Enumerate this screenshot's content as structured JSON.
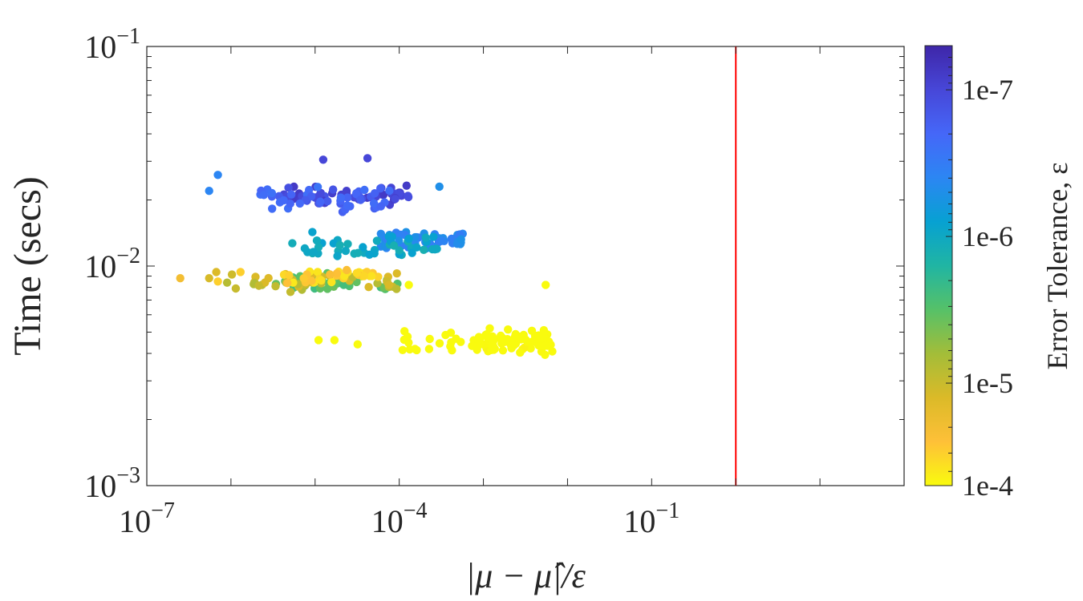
{
  "chart_data": {
    "type": "scatter",
    "xscale": "log",
    "yscale": "log",
    "xlim": [
      1e-07,
      100
    ],
    "ylim": [
      0.001,
      0.1
    ],
    "xticks": [
      {
        "value": 1e-07,
        "base": "10",
        "exp": "−7"
      },
      {
        "value": 0.0001,
        "base": "10",
        "exp": "−4"
      },
      {
        "value": 0.1,
        "base": "10",
        "exp": "−1"
      }
    ],
    "yticks": [
      {
        "value": 0.001,
        "base": "10",
        "exp": "−3"
      },
      {
        "value": 0.01,
        "base": "10",
        "exp": "−2"
      },
      {
        "value": 0.1,
        "base": "10",
        "exp": "−1"
      }
    ],
    "xlabel": "|μ − μ̂|/ε",
    "ylabel": "Time (secs)",
    "reference_line": {
      "x": 1,
      "color": "#ff0000"
    },
    "colorbar": {
      "label": "Error Tolerance, ε",
      "scale": "log",
      "range": [
        5e-05,
        5e-08
      ],
      "ticks": [
        {
          "value": 1e-07,
          "label": "1e-7"
        },
        {
          "value": 1e-06,
          "label": "1e-6"
        },
        {
          "value": 1e-05,
          "label": "1e-5"
        },
        {
          "value": 0.0001,
          "label": "1e-4"
        }
      ],
      "colormap": [
        "#f9fb0e",
        "#fec038",
        "#dbba28",
        "#a3bd39",
        "#56c168",
        "#20b5a3",
        "#07a1d2",
        "#2c86f3",
        "#4567f8",
        "#4747d8",
        "#3e26a8"
      ]
    },
    "clusters": [
      {
        "tol": 1e-07,
        "n": 60,
        "xmin": 4e-06,
        "xmax": 0.00013,
        "yc": 0.021,
        "yspread": 0.05
      },
      {
        "tol": 2e-07,
        "n": 45,
        "xmin": 2e-06,
        "xmax": 8e-05,
        "yc": 0.0205,
        "yspread": 0.07
      },
      {
        "tol": 4e-07,
        "n": 50,
        "xmin": 6e-05,
        "xmax": 0.0006,
        "yc": 0.013,
        "yspread": 0.05
      },
      {
        "tol": 1e-06,
        "n": 45,
        "xmin": 4e-06,
        "xmax": 0.0003,
        "yc": 0.0125,
        "yspread": 0.07
      },
      {
        "tol": 3e-06,
        "n": 40,
        "xmin": 3e-06,
        "xmax": 0.0001,
        "yc": 0.0085,
        "yspread": 0.05
      },
      {
        "tol": 1e-05,
        "n": 40,
        "xmin": 6e-07,
        "xmax": 0.0001,
        "yc": 0.0085,
        "yspread": 0.05
      },
      {
        "tol": 3e-05,
        "n": 35,
        "xmin": 4e-06,
        "xmax": 6e-05,
        "yc": 0.009,
        "yspread": 0.05
      },
      {
        "tol": 6e-05,
        "n": 60,
        "xmin": 0.001,
        "xmax": 0.007,
        "yc": 0.0045,
        "yspread": 0.06
      },
      {
        "tol": 0.0001,
        "n": 45,
        "xmin": 0.0001,
        "xmax": 0.006,
        "yc": 0.0046,
        "yspread": 0.06
      }
    ],
    "points": [
      {
        "x": 2.5e-07,
        "y": 0.0088,
        "tol": 2e-05
      },
      {
        "x": 5.5e-07,
        "y": 0.0088,
        "tol": 1.2e-05
      },
      {
        "x": 7e-07,
        "y": 0.0085,
        "tol": 3e-05
      },
      {
        "x": 9e-07,
        "y": 0.0084,
        "tol": 8e-06
      },
      {
        "x": 1.3e-06,
        "y": 0.0094,
        "tol": 3e-05
      },
      {
        "x": 5.5e-07,
        "y": 0.022,
        "tol": 4e-07
      },
      {
        "x": 7e-07,
        "y": 0.026,
        "tol": 4e-07
      },
      {
        "x": 4.2e-05,
        "y": 0.031,
        "tol": 1e-07
      },
      {
        "x": 1.25e-05,
        "y": 0.0305,
        "tol": 1e-07
      },
      {
        "x": 0.0003,
        "y": 0.023,
        "tol": 5e-07
      },
      {
        "x": 0.00013,
        "y": 0.0082,
        "tol": 0.0001
      },
      {
        "x": 0.0055,
        "y": 0.0082,
        "tol": 6e-05
      },
      {
        "x": 1.1e-05,
        "y": 0.0046,
        "tol": 0.0001
      },
      {
        "x": 1.7e-05,
        "y": 0.0046,
        "tol": 0.0001
      },
      {
        "x": 3.2e-05,
        "y": 0.0044,
        "tol": 0.0001
      }
    ]
  }
}
